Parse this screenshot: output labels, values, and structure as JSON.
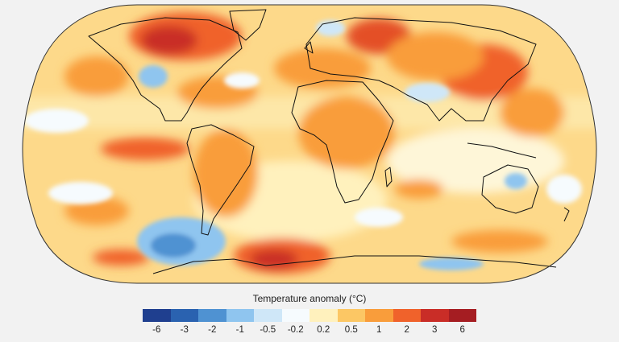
{
  "map": {
    "projection": "robinson",
    "background_color": "#f2f2f2",
    "ocean_base_color": "#fde39a"
  },
  "legend": {
    "title": "Temperature anomaly (°C)",
    "bins": [
      {
        "color": "#1f3f8f"
      },
      {
        "color": "#2a62b0"
      },
      {
        "color": "#4f92d2"
      },
      {
        "color": "#8fc5ef"
      },
      {
        "color": "#cfe7f8"
      },
      {
        "color": "#f6fbfe"
      },
      {
        "color": "#fff1bd"
      },
      {
        "color": "#fcc764"
      },
      {
        "color": "#f99d3b"
      },
      {
        "color": "#f0622b"
      },
      {
        "color": "#c92d27"
      },
      {
        "color": "#a51d22"
      }
    ],
    "ticks": [
      "-6",
      "-3",
      "-2",
      "-1",
      "-0.5",
      "-0.2",
      "0.2",
      "0.5",
      "1",
      "2",
      "3",
      "6"
    ]
  }
}
